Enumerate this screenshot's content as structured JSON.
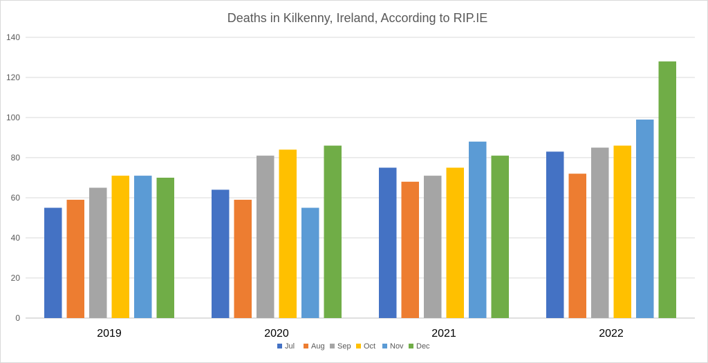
{
  "chart_data": {
    "type": "bar",
    "title": "Deaths in Kilkenny, Ireland, According to RIP.IE",
    "xlabel": "",
    "ylabel": "",
    "ylim": [
      0,
      140
    ],
    "yticks": [
      0,
      20,
      40,
      60,
      80,
      100,
      120,
      140
    ],
    "grid": true,
    "legend_position": "bottom",
    "categories": [
      "2019",
      "2020",
      "2021",
      "2022"
    ],
    "series": [
      {
        "name": "Jul",
        "color": "#4472C4",
        "values": [
          55,
          64,
          75,
          83
        ]
      },
      {
        "name": "Aug",
        "color": "#ED7D31",
        "values": [
          59,
          59,
          68,
          72
        ]
      },
      {
        "name": "Sep",
        "color": "#A5A5A5",
        "values": [
          65,
          81,
          71,
          85
        ]
      },
      {
        "name": "Oct",
        "color": "#FFC000",
        "values": [
          71,
          84,
          75,
          86
        ]
      },
      {
        "name": "Nov",
        "color": "#5B9BD5",
        "values": [
          71,
          55,
          88,
          99
        ]
      },
      {
        "name": "Dec",
        "color": "#70AD47",
        "values": [
          70,
          86,
          81,
          128
        ]
      }
    ]
  }
}
